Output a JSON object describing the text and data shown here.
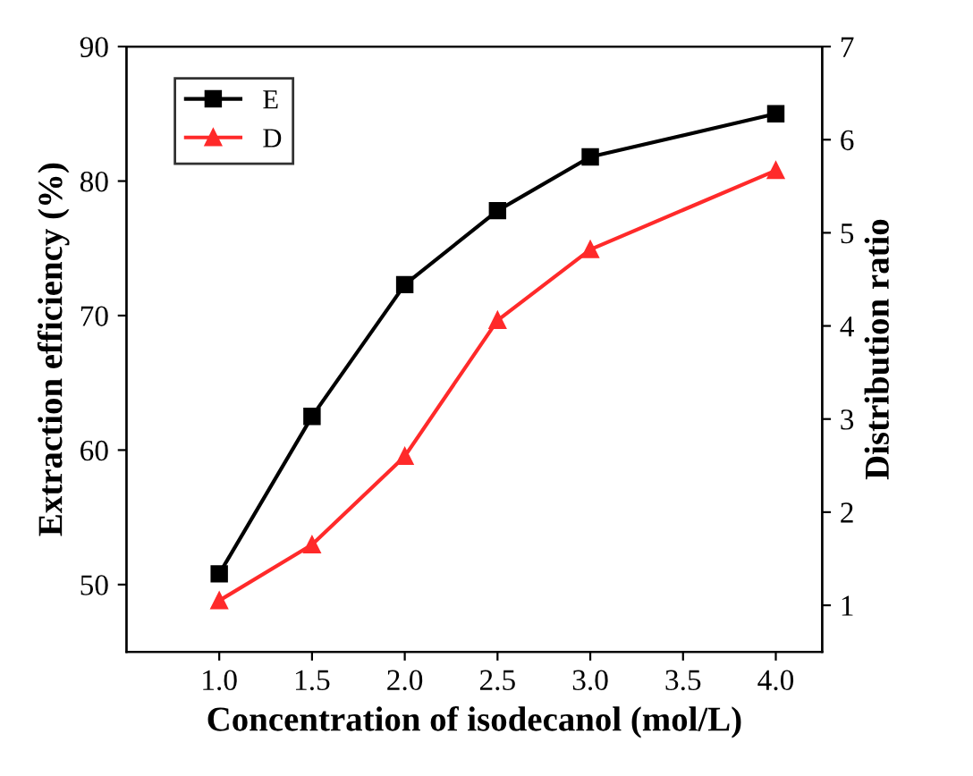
{
  "chart_data": {
    "type": "line",
    "xlabel": "Concentration of isodecanol (mol/L)",
    "ylabel": "Extraction efficiency (%)",
    "y2label": "Distribution ratio",
    "x": [
      1.0,
      1.5,
      2.0,
      2.5,
      3.0,
      4.0
    ],
    "series": [
      {
        "name": "E",
        "color": "#000000",
        "marker": "square",
        "values": [
          50.8,
          62.5,
          72.3,
          77.8,
          81.8,
          85.0
        ]
      },
      {
        "name": "D",
        "color": "#ff2a2a",
        "marker": "triangle",
        "axis": "y2",
        "values": [
          1.05,
          1.65,
          2.6,
          4.06,
          4.82,
          5.67
        ]
      }
    ],
    "xlim": [
      0.5,
      4.25
    ],
    "xticks": [
      {
        "value": 1,
        "label": "1.0"
      },
      1.5,
      {
        "value": 2,
        "label": "2.0"
      },
      2.5,
      {
        "value": 3,
        "label": "3.0"
      },
      3.5,
      {
        "value": 4,
        "label": "4.0"
      }
    ],
    "ylim": [
      45,
      90
    ],
    "yticks": [
      50,
      60,
      70,
      80,
      90
    ],
    "y2lim": [
      0.5,
      7
    ],
    "y2ticks": [
      1,
      2,
      3,
      4,
      5,
      6,
      7
    ],
    "legend": "top left",
    "grid": false,
    "line_style": "solid"
  }
}
